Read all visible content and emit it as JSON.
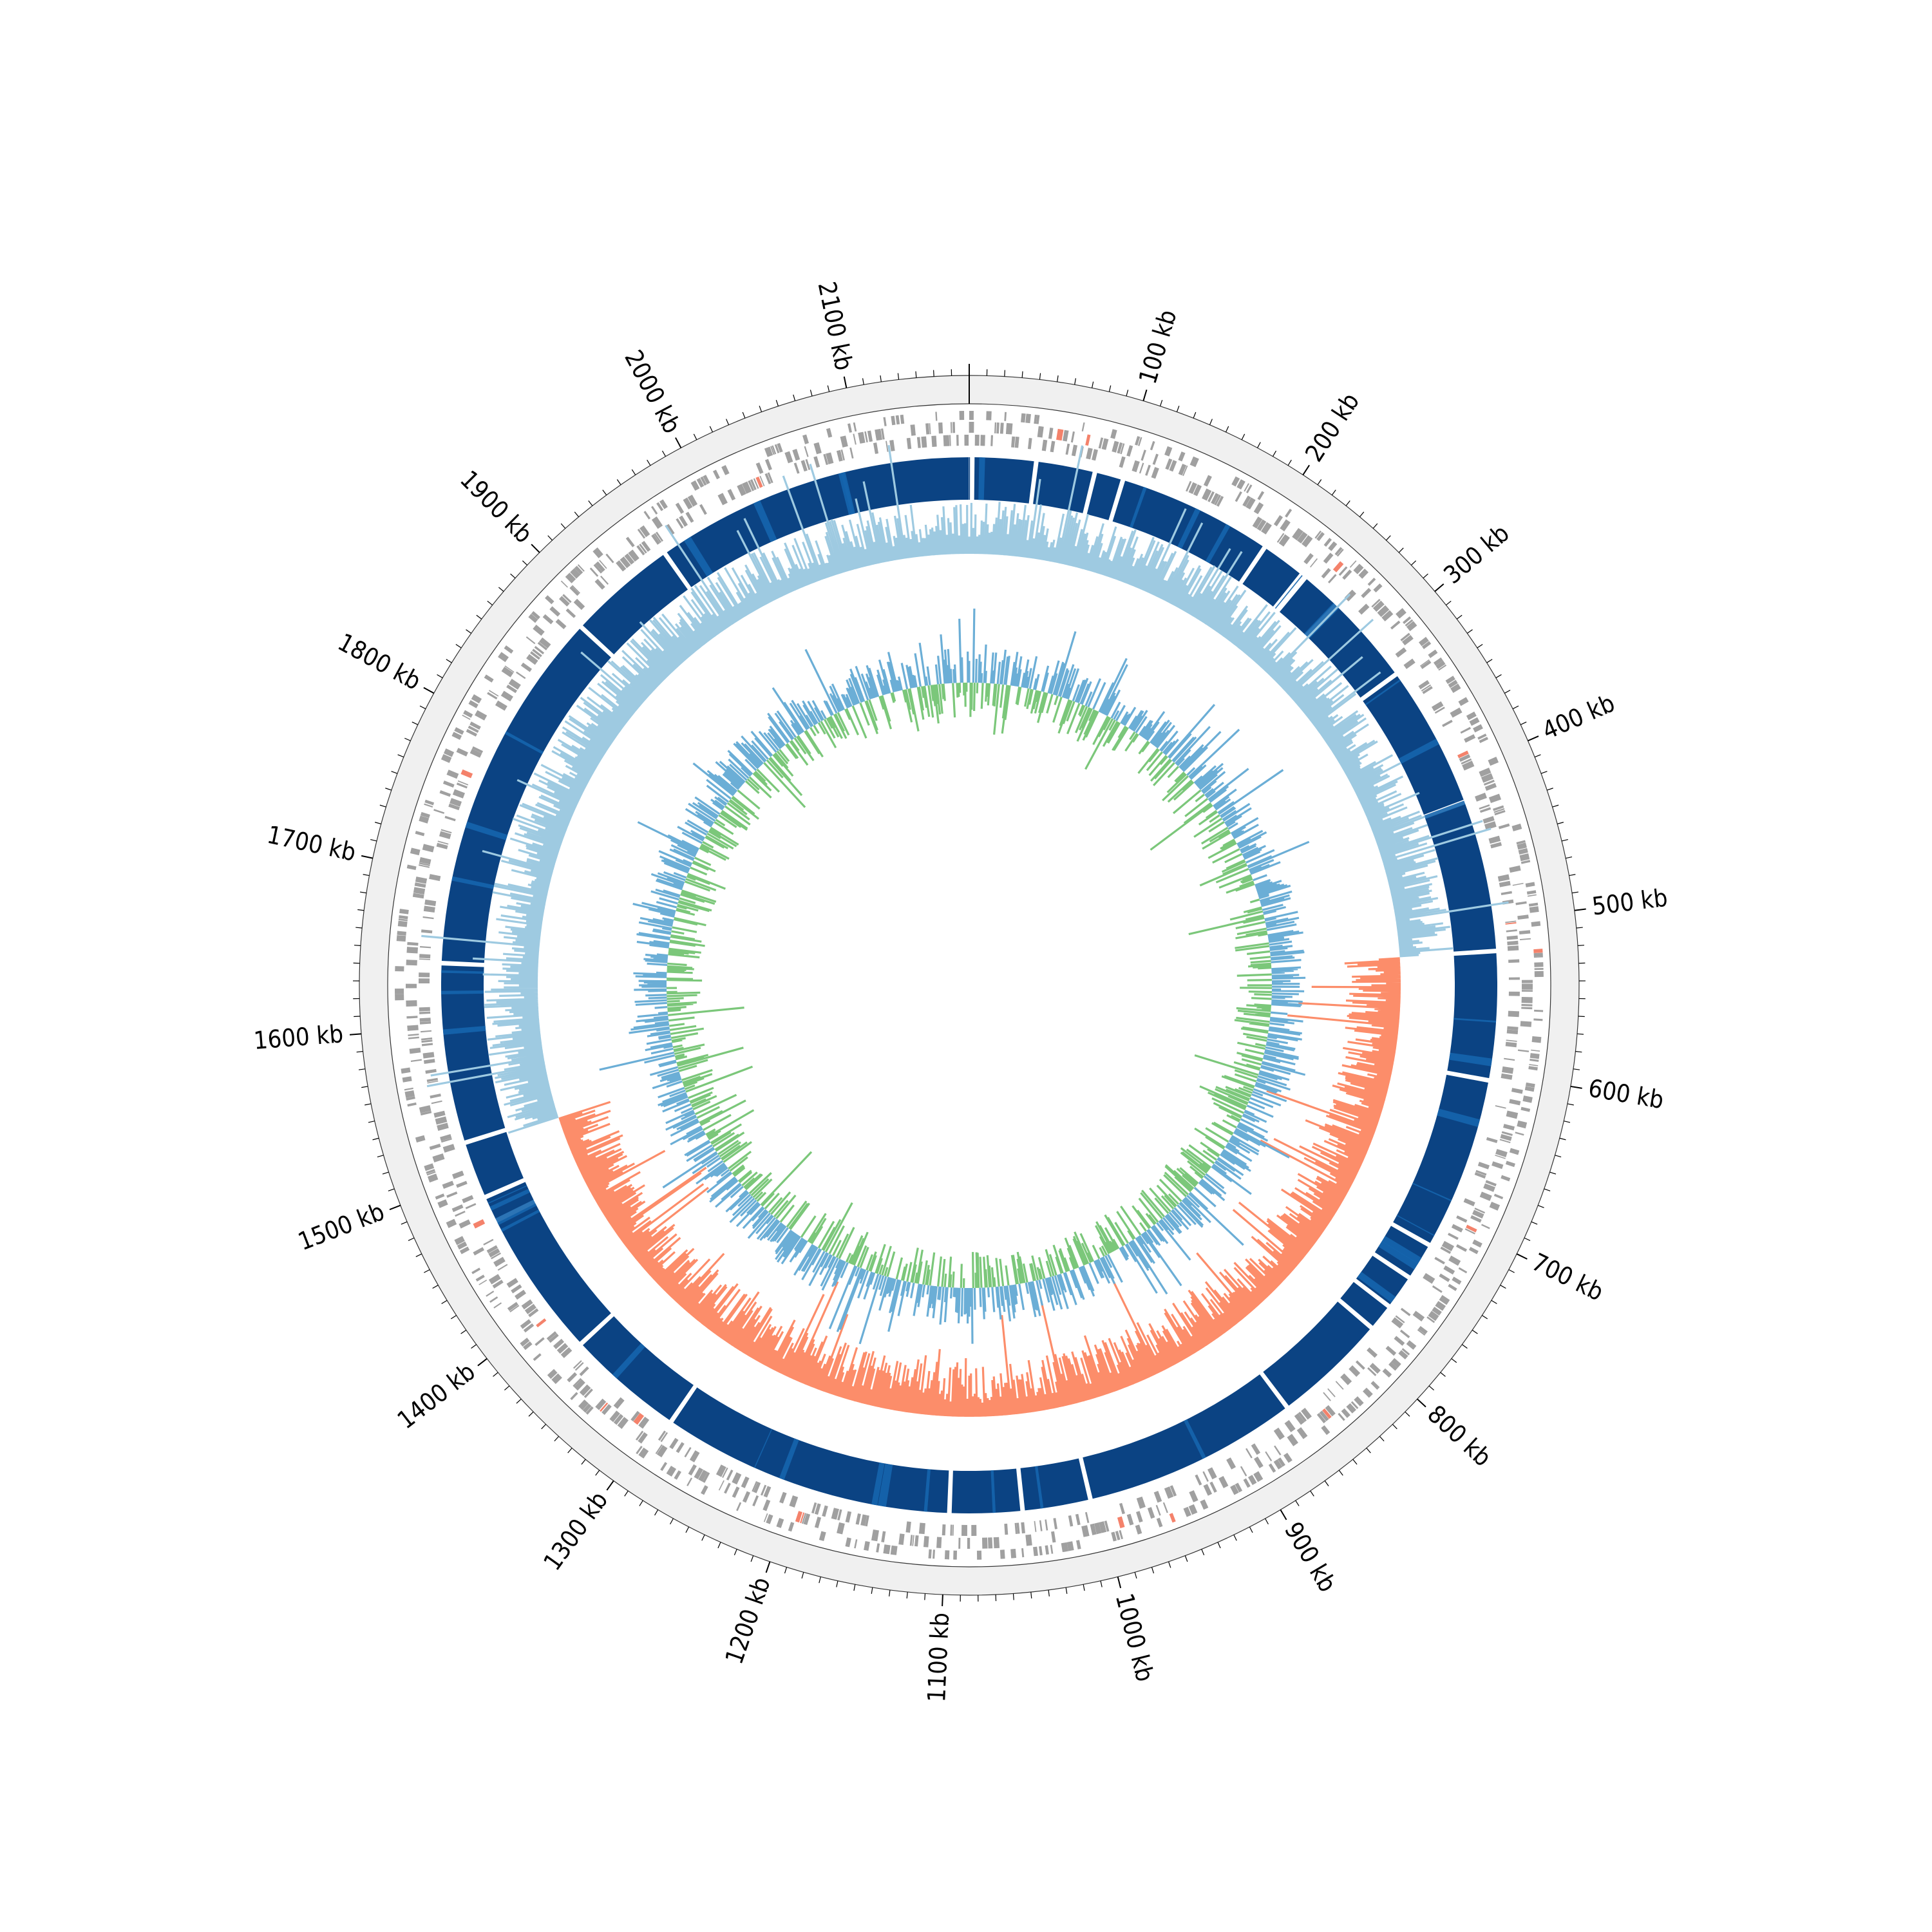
{
  "genome": {
    "length_kb": 2170,
    "tick_labels": [
      {
        "kb": 100,
        "text": "100 kb"
      },
      {
        "kb": 200,
        "text": "200 kb"
      },
      {
        "kb": 300,
        "text": "300 kb"
      },
      {
        "kb": 400,
        "text": "400 kb"
      },
      {
        "kb": 500,
        "text": "500 kb"
      },
      {
        "kb": 600,
        "text": "600 kb"
      },
      {
        "kb": 700,
        "text": "700 kb"
      },
      {
        "kb": 800,
        "text": "800 kb"
      },
      {
        "kb": 900,
        "text": "900 kb"
      },
      {
        "kb": 1000,
        "text": "1000 kb"
      },
      {
        "kb": 1100,
        "text": "1100 kb"
      },
      {
        "kb": 1200,
        "text": "1200 kb"
      },
      {
        "kb": 1300,
        "text": "1300 kb"
      },
      {
        "kb": 1400,
        "text": "1400 kb"
      },
      {
        "kb": 1500,
        "text": "1500 kb"
      },
      {
        "kb": 1600,
        "text": "1600 kb"
      },
      {
        "kb": 1700,
        "text": "1700 kb"
      },
      {
        "kb": 1800,
        "text": "1800 kb"
      },
      {
        "kb": 1900,
        "text": "1900 kb"
      },
      {
        "kb": 2000,
        "text": "2000 kb"
      },
      {
        "kb": 2100,
        "text": "2100 kb"
      }
    ],
    "minor_tick_step_kb": 10
  },
  "tracks": {
    "gene_color": "#a0a0a0",
    "gene_highlight_color": "#f4826b",
    "block_color": "#0b4383",
    "block_alt_color": "#1565ad",
    "gap_positions_kb": [
      2,
      44,
      83,
      102,
      205,
      235,
      238,
      265,
      325,
      420,
      520,
      605,
      720,
      745,
      768,
      786,
      862,
      1005,
      1050,
      1098,
      1292,
      1370,
      1468,
      1485,
      1523,
      1642,
      1885,
      1958
    ],
    "gc_positive_color": "#9ecae1",
    "gc_negative_color": "#fc8d6a",
    "skew_positive_color": "#6baed6",
    "skew_negative_color": "#7bc77a",
    "gc_skew_sign_regions_kb": [
      {
        "start": 0,
        "end": 520,
        "sign": "positive"
      },
      {
        "start": 520,
        "end": 1520,
        "sign": "negative"
      },
      {
        "start": 1520,
        "end": 2170,
        "sign": "positive"
      }
    ]
  }
}
